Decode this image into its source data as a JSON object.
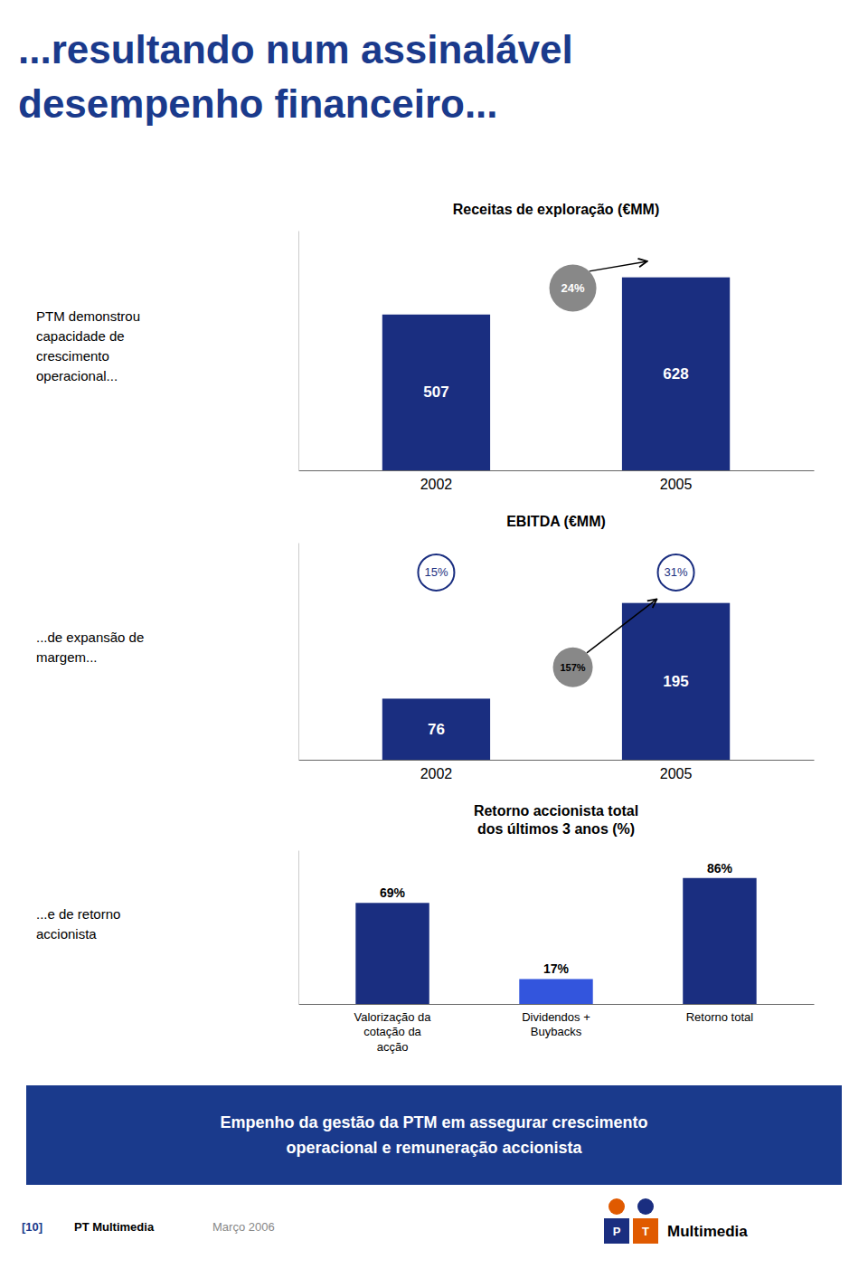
{
  "title": "...resultando num assinalável\ndesempenho financeiro...",
  "annotations": [
    "Empenho da gestão da PTM em assegurar crescimento\noperacional e remuneração accionista",
    "[10]",
    "PT Multimedia",
    "Março 2006",
    "P",
    "T",
    "Multimedia"
  ],
  "chart_data": [
    {
      "type": "bar",
      "title": "Receitas de exploração (€MM)",
      "categories": [
        "2002",
        "2005"
      ],
      "values": [
        507,
        628
      ],
      "color": "#1a2e80",
      "ylim": [
        0,
        780
      ],
      "tick_labels": "x",
      "grid": false,
      "data_labels": true,
      "annotations": [
        "PTM demonstrou\ncapacidade de\ncrescimento\noperacional...",
        "24%"
      ]
    },
    {
      "type": "bar",
      "title": "EBITDA (€MM)",
      "categories": [
        "2002",
        "2005"
      ],
      "values": [
        76,
        195
      ],
      "color": "#1a2e80",
      "ylim": [
        0,
        270
      ],
      "tick_labels": "x",
      "grid": false,
      "data_labels": true,
      "annotations": [
        "...de expansão de\nmargem...",
        "157%",
        "15%",
        "31%"
      ]
    },
    {
      "type": "bar",
      "title": "Retorno accionista total\ndos últimos 3 anos (%)",
      "categories": [
        "Valorização da\ncotação da\nacção",
        "Dividendos +\nBuybacks",
        "Retorno total"
      ],
      "values": [
        69,
        17,
        86
      ],
      "value_labels": [
        "69%",
        "17%",
        "86%"
      ],
      "colors": [
        "#1a2e80",
        "#3355dd",
        "#1a2e80"
      ],
      "ylim": [
        0,
        105
      ],
      "tick_labels": "x",
      "grid": false,
      "data_labels": true,
      "annotations": [
        "...e de retorno\naccionista"
      ]
    }
  ]
}
